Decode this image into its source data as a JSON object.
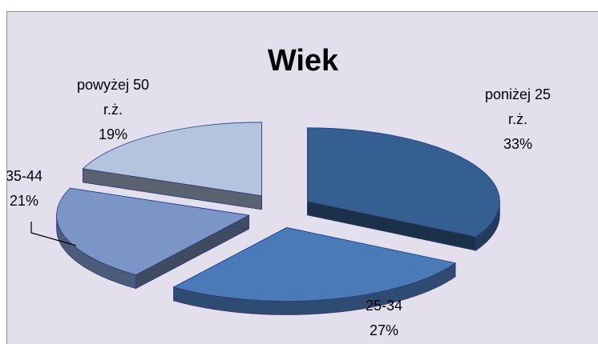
{
  "chart_data": {
    "type": "pie",
    "title": "Wiek",
    "legend": "none",
    "slices": [
      {
        "label_lines": [
          "poniżej 25",
          "r.ż."
        ],
        "value_label": "33%",
        "value": 33,
        "color": "#365f91"
      },
      {
        "label_lines": [
          "25-34"
        ],
        "value_label": "27%",
        "value": 27,
        "color": "#4a7ab8"
      },
      {
        "label_lines": [
          "35-44"
        ],
        "value_label": "21%",
        "value": 21,
        "color": "#7b96c6"
      },
      {
        "label_lines": [
          "powyżej 50",
          "r.ż."
        ],
        "value_label": "19%",
        "value": 19,
        "color": "#b5c4de"
      }
    ]
  }
}
